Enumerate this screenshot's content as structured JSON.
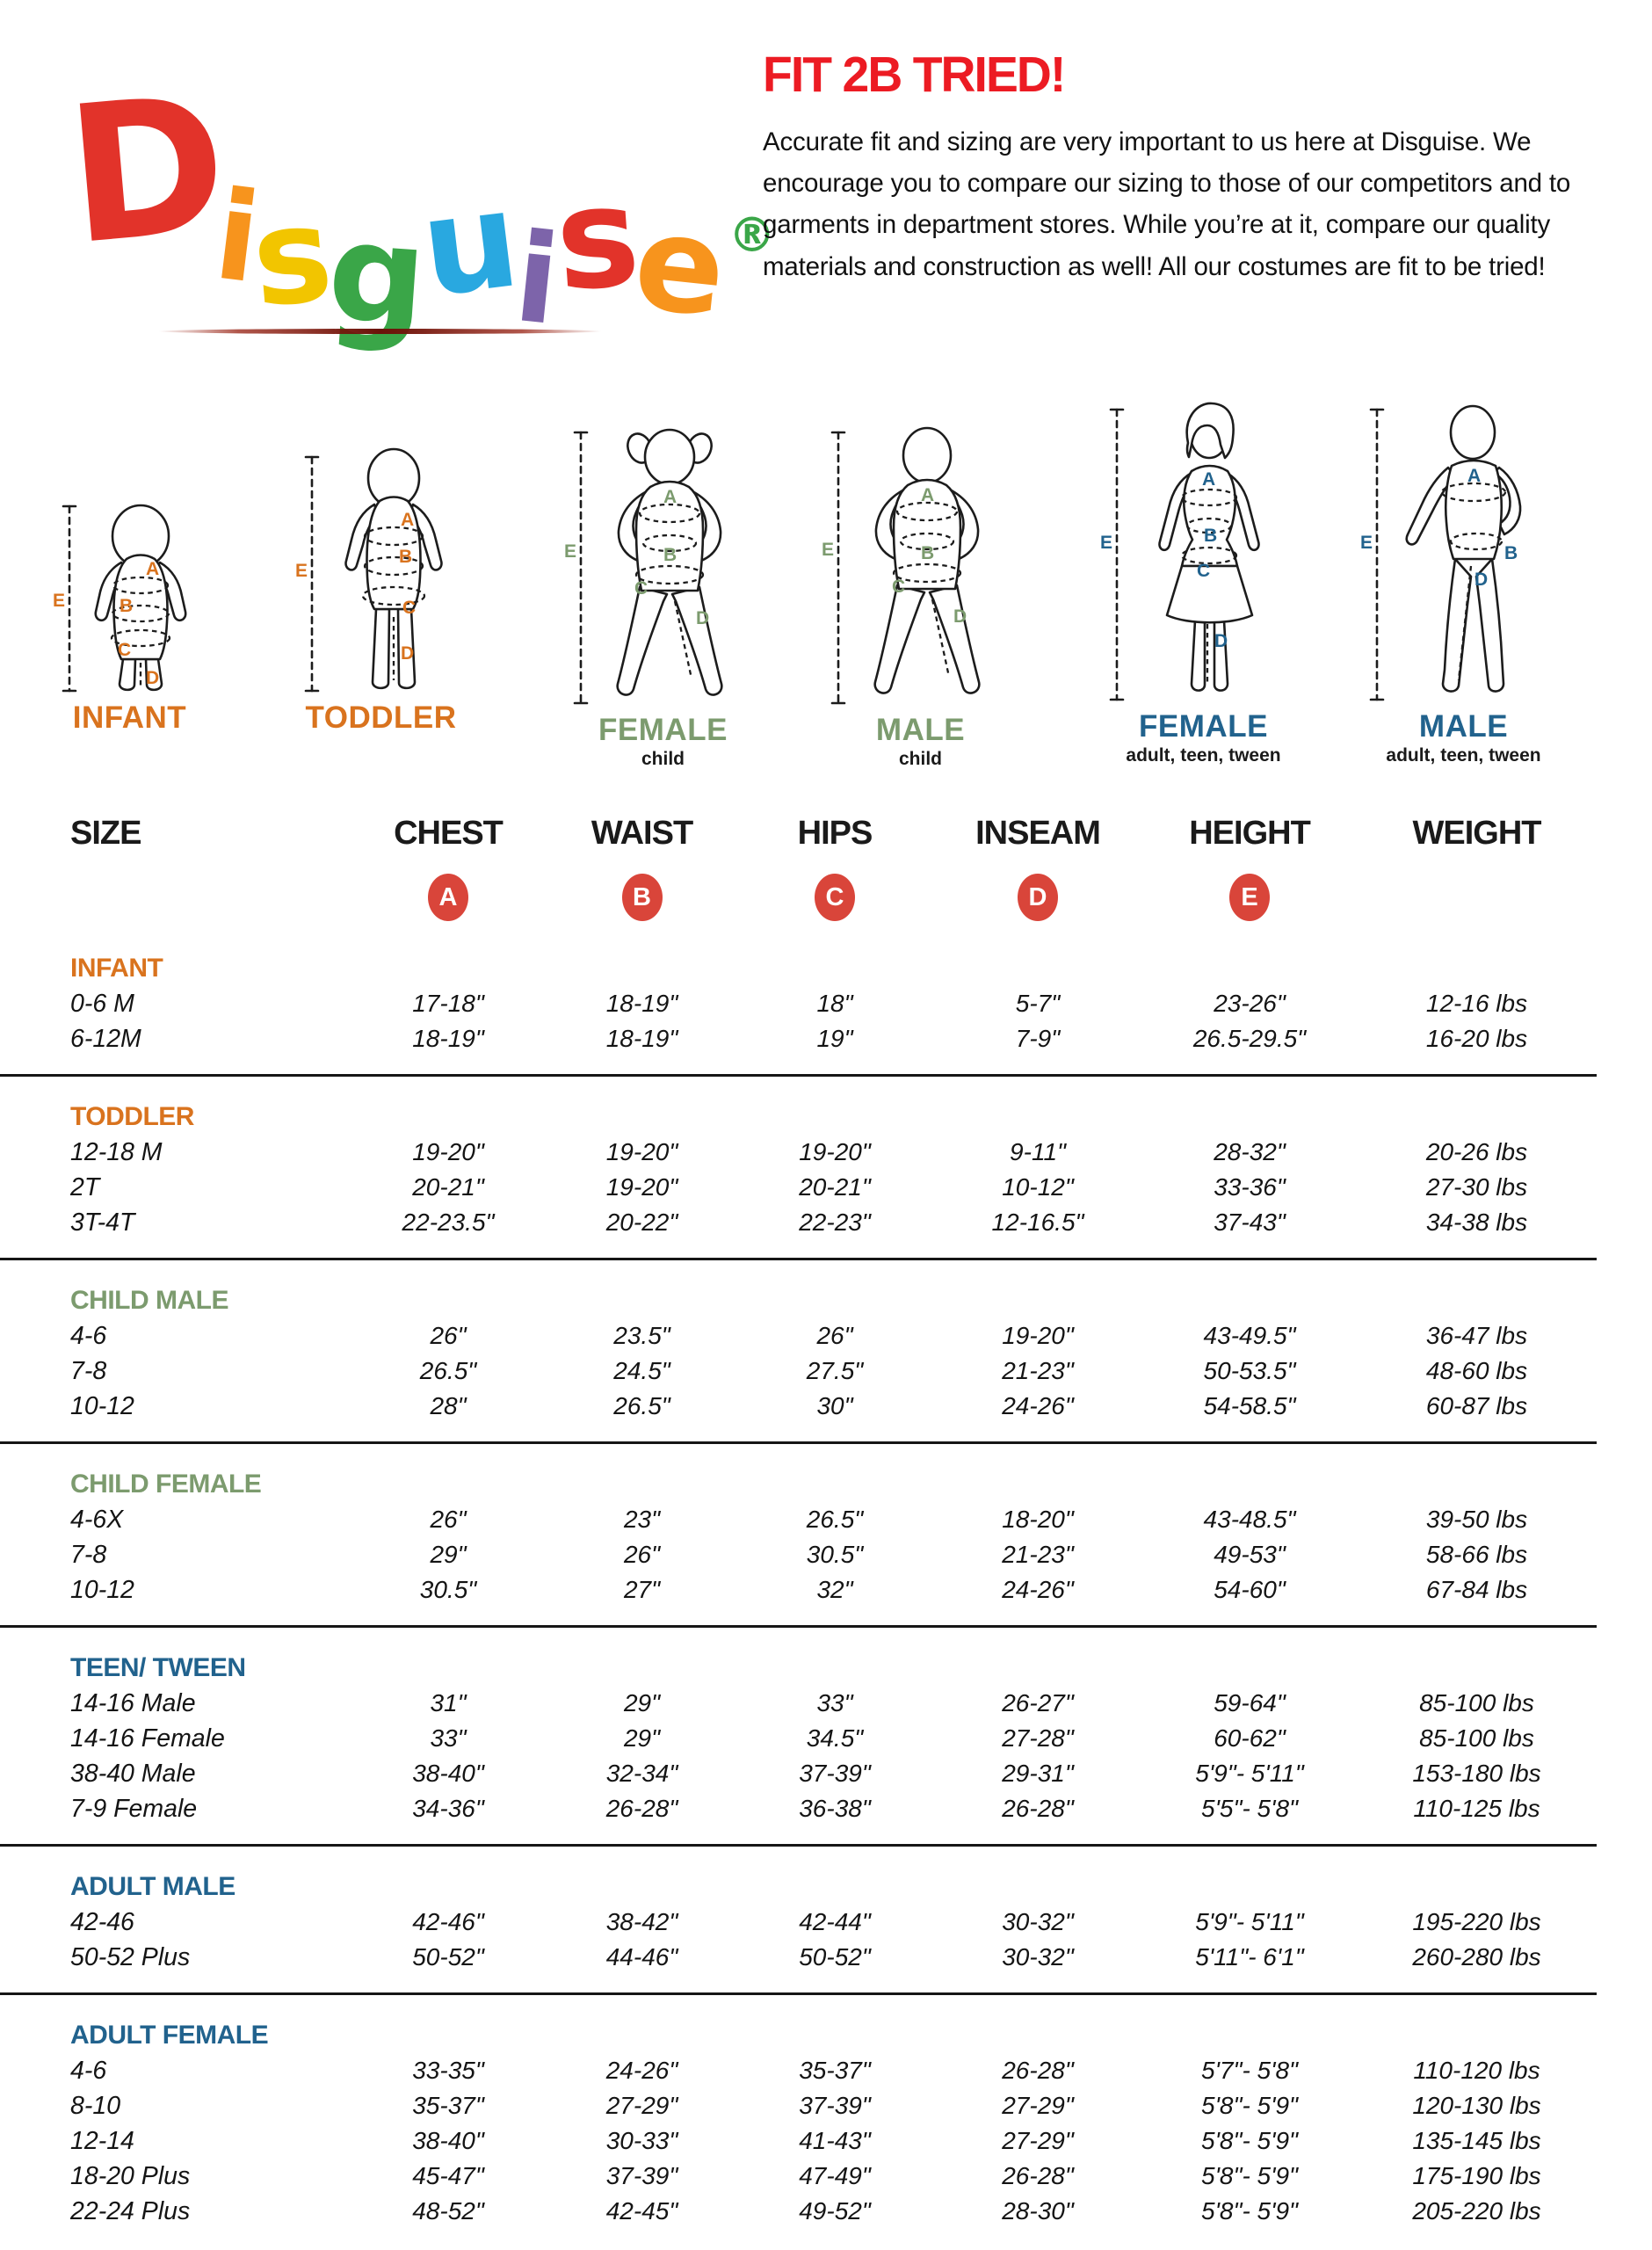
{
  "logo": {
    "letters": [
      {
        "ch": "D",
        "color": "#e2332a"
      },
      {
        "ch": "i",
        "color": "#f7941d"
      },
      {
        "ch": "s",
        "color": "#f2c500"
      },
      {
        "ch": "g",
        "color": "#3aa648"
      },
      {
        "ch": "u",
        "color": "#29a8e0"
      },
      {
        "ch": "i",
        "color": "#7d64aa"
      },
      {
        "ch": "s",
        "color": "#e2332a"
      },
      {
        "ch": "e",
        "color": "#f7941d"
      },
      {
        "ch": "®",
        "color": "#3aa648"
      }
    ]
  },
  "intro": {
    "title": "FIT 2B TRIED!",
    "title_color": "#ec1b23",
    "body": "Accurate fit and sizing are very important to us here at Disguise. We encourage you to compare our sizing to those of our competitors and to garments in department stores. While you’re at it, compare our quality materials and construction as well! All our costumes are fit to be tried!"
  },
  "measure_letters": {
    "A": "A",
    "B": "B",
    "C": "C",
    "D": "D",
    "E": "E"
  },
  "figures": [
    {
      "label": "INFANT",
      "sub": "",
      "color": "#d9731e"
    },
    {
      "label": "TODDLER",
      "sub": "",
      "color": "#d9731e"
    },
    {
      "label": "FEMALE",
      "sub": "child",
      "color": "#7c9b6e"
    },
    {
      "label": "MALE",
      "sub": "child",
      "color": "#7c9b6e"
    },
    {
      "label": "FEMALE",
      "sub": "adult, teen, tween",
      "color": "#21628d"
    },
    {
      "label": "MALE",
      "sub": "adult, teen, tween",
      "color": "#21628d"
    }
  ],
  "table": {
    "headers": [
      "SIZE",
      "CHEST",
      "WAIST",
      "HIPS",
      "INSEAM",
      "HEIGHT",
      "WEIGHT"
    ],
    "letter_badges": [
      "A",
      "B",
      "C",
      "D",
      "E"
    ],
    "badge_color": "#d9453a",
    "sections": [
      {
        "name": "INFANT",
        "color": "#d9731e",
        "rows": [
          [
            "0-6 M",
            "17-18\"",
            "18-19\"",
            "18\"",
            "5-7\"",
            "23-26\"",
            "12-16 lbs"
          ],
          [
            "6-12M",
            "18-19\"",
            "18-19\"",
            "19\"",
            "7-9\"",
            "26.5-29.5\"",
            "16-20 lbs"
          ]
        ]
      },
      {
        "name": "TODDLER",
        "color": "#d9731e",
        "rows": [
          [
            "12-18 M",
            "19-20\"",
            "19-20\"",
            "19-20\"",
            "9-11\"",
            "28-32\"",
            "20-26 lbs"
          ],
          [
            "2T",
            "20-21\"",
            "19-20\"",
            "20-21\"",
            "10-12\"",
            "33-36\"",
            "27-30 lbs"
          ],
          [
            "3T-4T",
            "22-23.5\"",
            "20-22\"",
            "22-23\"",
            "12-16.5\"",
            "37-43\"",
            "34-38 lbs"
          ]
        ]
      },
      {
        "name": "CHILD MALE",
        "color": "#7c9b6e",
        "rows": [
          [
            "4-6",
            "26\"",
            "23.5\"",
            "26\"",
            "19-20\"",
            "43-49.5\"",
            "36-47 lbs"
          ],
          [
            "7-8",
            "26.5\"",
            "24.5\"",
            "27.5\"",
            "21-23\"",
            "50-53.5\"",
            "48-60 lbs"
          ],
          [
            "10-12",
            "28\"",
            "26.5\"",
            "30\"",
            "24-26\"",
            "54-58.5\"",
            "60-87 lbs"
          ]
        ]
      },
      {
        "name": "CHILD FEMALE",
        "color": "#7c9b6e",
        "rows": [
          [
            "4-6X",
            "26\"",
            "23\"",
            "26.5\"",
            "18-20\"",
            "43-48.5\"",
            "39-50 lbs"
          ],
          [
            "7-8",
            "29\"",
            "26\"",
            "30.5\"",
            "21-23\"",
            "49-53\"",
            "58-66 lbs"
          ],
          [
            "10-12",
            "30.5\"",
            "27\"",
            "32\"",
            "24-26\"",
            "54-60\"",
            "67-84 lbs"
          ]
        ]
      },
      {
        "name": "TEEN/ TWEEN",
        "color": "#21628d",
        "rows": [
          [
            "14-16 Male",
            "31\"",
            "29\"",
            "33\"",
            "26-27\"",
            "59-64\"",
            "85-100 lbs"
          ],
          [
            "14-16 Female",
            "33\"",
            "29\"",
            "34.5\"",
            "27-28\"",
            "60-62\"",
            "85-100 lbs"
          ],
          [
            "38-40 Male",
            "38-40\"",
            "32-34\"",
            "37-39\"",
            "29-31\"",
            "5'9\"- 5'11\"",
            "153-180 lbs"
          ],
          [
            "7-9 Female",
            "34-36\"",
            "26-28\"",
            "36-38\"",
            "26-28\"",
            "5'5\"- 5'8\"",
            "110-125 lbs"
          ]
        ]
      },
      {
        "name": "ADULT MALE",
        "color": "#21628d",
        "rows": [
          [
            "42-46",
            "42-46\"",
            "38-42\"",
            "42-44\"",
            "30-32\"",
            "5'9\"- 5'11\"",
            "195-220 lbs"
          ],
          [
            "50-52 Plus",
            "50-52\"",
            "44-46\"",
            "50-52\"",
            "30-32\"",
            "5'11\"- 6'1\"",
            "260-280 lbs"
          ]
        ]
      },
      {
        "name": "ADULT FEMALE",
        "color": "#21628d",
        "rows": [
          [
            "4-6",
            "33-35\"",
            "24-26\"",
            "35-37\"",
            "26-28\"",
            "5'7\"- 5'8\"",
            "110-120 lbs"
          ],
          [
            "8-10",
            "35-37\"",
            "27-29\"",
            "37-39\"",
            "27-29\"",
            "5'8\"- 5'9\"",
            "120-130 lbs"
          ],
          [
            "12-14",
            "38-40\"",
            "30-33\"",
            "41-43\"",
            "27-29\"",
            "5'8\"- 5'9\"",
            "135-145 lbs"
          ],
          [
            "18-20 Plus",
            "45-47\"",
            "37-39\"",
            "47-49\"",
            "26-28\"",
            "5'8\"- 5'9\"",
            "175-190 lbs"
          ],
          [
            "22-24 Plus",
            "48-52\"",
            "42-45\"",
            "49-52\"",
            "28-30\"",
            "5'8\"- 5'9\"",
            "205-220 lbs"
          ]
        ]
      }
    ]
  }
}
